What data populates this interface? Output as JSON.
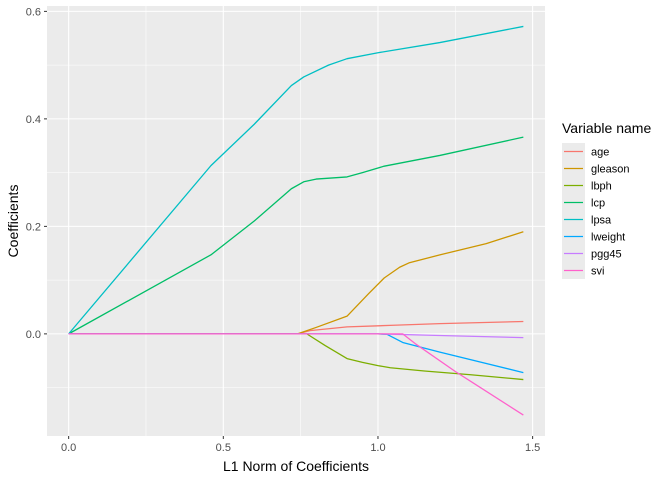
{
  "chart_data": {
    "type": "line",
    "xlabel": "L1 Norm of Coefficients",
    "ylabel": "Coefficients",
    "xlim": [
      -0.07,
      1.54
    ],
    "ylim": [
      -0.19,
      0.61
    ],
    "x_ticks": [
      0.0,
      0.5,
      1.0,
      1.5
    ],
    "x_tick_labels": [
      "0.0",
      "0.5",
      "1.0",
      "1.5"
    ],
    "y_ticks": [
      0.0,
      0.2,
      0.4,
      0.6
    ],
    "y_tick_labels": [
      "0.0",
      "0.2",
      "0.4",
      "0.6"
    ],
    "grid": true,
    "legend": {
      "title": "Variable name",
      "position": "right"
    },
    "series": [
      {
        "name": "age",
        "color": "#F8766D",
        "points": [
          [
            0,
            0
          ],
          [
            0.74,
            0
          ],
          [
            0.78,
            0.006
          ],
          [
            0.9,
            0.013
          ],
          [
            1.05,
            0.016
          ],
          [
            1.2,
            0.019
          ],
          [
            1.47,
            0.023
          ]
        ]
      },
      {
        "name": "gleason",
        "color": "#CD9600",
        "points": [
          [
            0,
            0
          ],
          [
            0.74,
            0
          ],
          [
            0.8,
            0.012
          ],
          [
            0.9,
            0.033
          ],
          [
            0.97,
            0.075
          ],
          [
            1.02,
            0.104
          ],
          [
            1.07,
            0.124
          ],
          [
            1.1,
            0.132
          ],
          [
            1.2,
            0.147
          ],
          [
            1.35,
            0.168
          ],
          [
            1.47,
            0.19
          ]
        ]
      },
      {
        "name": "lbph",
        "color": "#7CAE00",
        "points": [
          [
            0,
            0
          ],
          [
            0.77,
            0
          ],
          [
            0.83,
            -0.022
          ],
          [
            0.9,
            -0.046
          ],
          [
            0.95,
            -0.053
          ],
          [
            1.0,
            -0.059
          ],
          [
            1.04,
            -0.063
          ],
          [
            1.15,
            -0.069
          ],
          [
            1.3,
            -0.076
          ],
          [
            1.47,
            -0.085
          ]
        ]
      },
      {
        "name": "lcp",
        "color": "#00BE67",
        "points": [
          [
            0,
            0
          ],
          [
            0.46,
            0.147
          ],
          [
            0.6,
            0.21
          ],
          [
            0.72,
            0.27
          ],
          [
            0.76,
            0.283
          ],
          [
            0.8,
            0.288
          ],
          [
            0.9,
            0.292
          ],
          [
            0.95,
            0.3
          ],
          [
            1.02,
            0.312
          ],
          [
            1.2,
            0.332
          ],
          [
            1.47,
            0.366
          ]
        ]
      },
      {
        "name": "lpsa",
        "color": "#00BFC4",
        "points": [
          [
            0,
            0
          ],
          [
            0.46,
            0.313
          ],
          [
            0.6,
            0.39
          ],
          [
            0.72,
            0.462
          ],
          [
            0.76,
            0.478
          ],
          [
            0.84,
            0.5
          ],
          [
            0.9,
            0.512
          ],
          [
            1.0,
            0.523
          ],
          [
            1.2,
            0.542
          ],
          [
            1.47,
            0.572
          ]
        ]
      },
      {
        "name": "lweight",
        "color": "#00A9FF",
        "points": [
          [
            0,
            0
          ],
          [
            1.0,
            0
          ],
          [
            1.03,
            -0.001
          ],
          [
            1.08,
            -0.016
          ],
          [
            1.2,
            -0.034
          ],
          [
            1.47,
            -0.072
          ]
        ]
      },
      {
        "name": "pgg45",
        "color": "#C77CFF",
        "points": [
          [
            0,
            0
          ],
          [
            1.0,
            0
          ],
          [
            1.2,
            -0.003
          ],
          [
            1.47,
            -0.007
          ]
        ]
      },
      {
        "name": "svi",
        "color": "#FF61CC",
        "points": [
          [
            0,
            0
          ],
          [
            1.08,
            0
          ],
          [
            1.12,
            -0.018
          ],
          [
            1.25,
            -0.07
          ],
          [
            1.47,
            -0.151
          ]
        ]
      }
    ]
  }
}
